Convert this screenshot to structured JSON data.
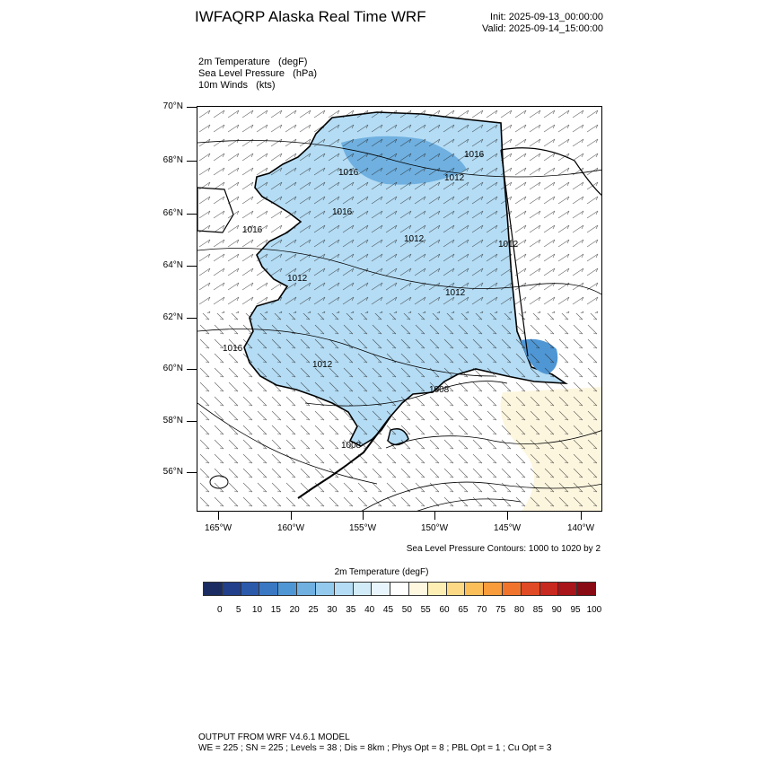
{
  "title": "IWFAQRP Alaska Real Time WRF",
  "init": "Init: 2025-09-13_00:00:00",
  "valid": "Valid: 2025-09-14_15:00:00",
  "variables": [
    "2m Temperature   (degF)",
    "Sea Level Pressure   (hPa)",
    "10m Winds   (kts)"
  ],
  "lat_labels": [
    "70°N",
    "68°N",
    "66°N",
    "64°N",
    "62°N",
    "60°N",
    "58°N",
    "56°N"
  ],
  "lon_labels": [
    "165°W",
    "160°W",
    "155°W",
    "150°W",
    "145°W",
    "140°W"
  ],
  "pressure_labels": [
    "1016",
    "1016",
    "1016",
    "1012",
    "1016",
    "1012",
    "1016",
    "1012",
    "1012",
    "1012",
    "1012",
    "1008",
    "1008"
  ],
  "contour_note": "Sea Level Pressure Contours: 1000 to 1020 by 2",
  "colorbar": {
    "title": "2m Temperature  (degF)",
    "ticks": [
      "0",
      "5",
      "10",
      "15",
      "20",
      "25",
      "30",
      "35",
      "40",
      "45",
      "50",
      "55",
      "60",
      "65",
      "70",
      "75",
      "80",
      "85",
      "90",
      "95",
      "100"
    ],
    "colors": [
      "#1b2c62",
      "#213f8a",
      "#2b5aaa",
      "#3a78c3",
      "#4f96d4",
      "#6fb0e0",
      "#92c9ec",
      "#b4dcf4",
      "#d2ebf8",
      "#e9f5fc",
      "#ffffff",
      "#fef8e0",
      "#fdeeb4",
      "#fcd985",
      "#fbbf5a",
      "#f89c3c",
      "#f0742c",
      "#e04a24",
      "#c7281f",
      "#a8141a",
      "#8a0a14"
    ]
  },
  "footer": {
    "line1": "OUTPUT FROM WRF V4.6.1 MODEL",
    "line2": "WE = 225 ; SN = 225 ; Levels = 38 ; Dis = 8km ; Phys Opt = 8 ; PBL Opt = 1 ; Cu Opt = 3"
  }
}
